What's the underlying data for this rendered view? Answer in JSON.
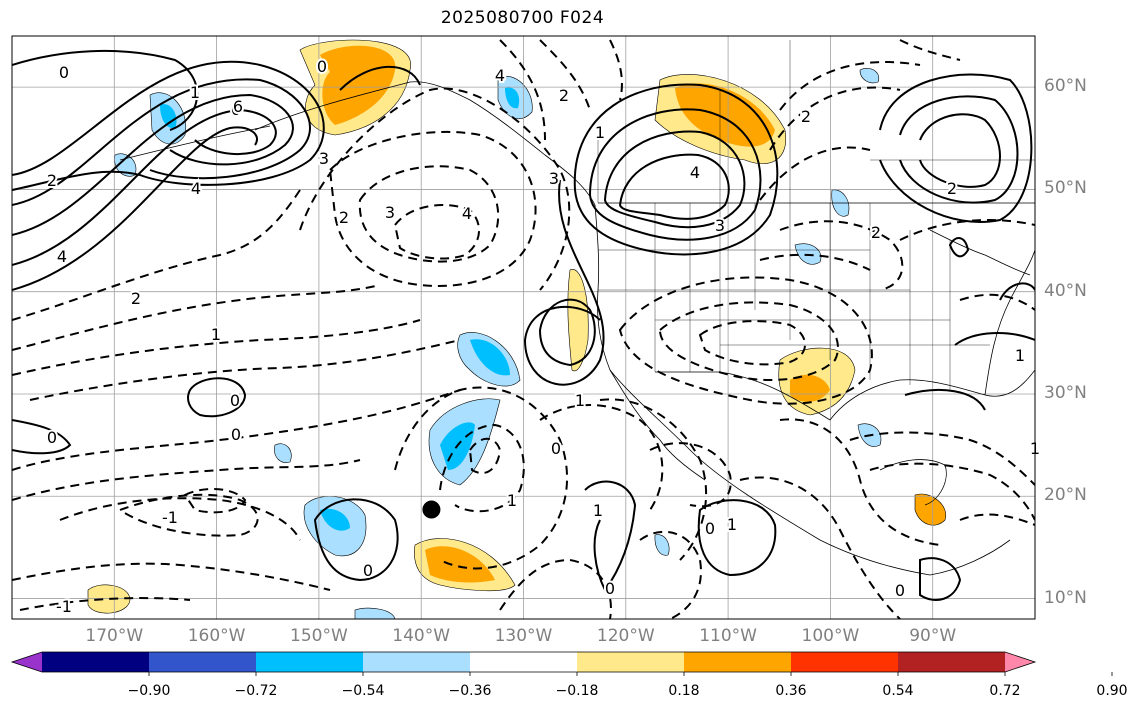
{
  "title": "2025080700 F024",
  "map": {
    "extent": {
      "lon_min": -180,
      "lon_max": -80,
      "lat_min": 8,
      "lat_max": 65
    },
    "gridlines": true,
    "lat_labels": [
      "60°N",
      "50°N",
      "40°N",
      "30°N",
      "20°N",
      "10°N"
    ],
    "lat_values": [
      60,
      50,
      40,
      30,
      20,
      10
    ],
    "lon_labels": [
      "170°W",
      "160°W",
      "150°W",
      "140°W",
      "130°W",
      "120°W",
      "110°W",
      "100°W",
      "90°W"
    ],
    "lon_values": [
      -170,
      -160,
      -150,
      -140,
      -130,
      -120,
      -110,
      -100,
      -90
    ],
    "contour_labels": [
      "0",
      "0",
      "0",
      "0",
      "0",
      "0",
      "0",
      "0",
      "0",
      "0",
      "0",
      "1",
      "1",
      "1",
      "1",
      "1",
      "1",
      "1",
      "1",
      "1",
      "-1",
      "-1",
      "2",
      "2",
      "2",
      "2",
      "2",
      "2",
      "2",
      "3",
      "3",
      "3",
      "3",
      "4",
      "4",
      "4",
      "4",
      "4",
      "6"
    ],
    "marker": {
      "lon": -139,
      "lat": 18.7
    }
  },
  "colorbar": {
    "colors": [
      "#9933cc",
      "#000080",
      "#3355cc",
      "#00bfff",
      "#aadfff",
      "#ffffff",
      "#ffe98a",
      "#ffa500",
      "#ff3300",
      "#b22222",
      "#ff88aa"
    ],
    "ticks": [
      "−0.90",
      "−0.72",
      "−0.54",
      "−0.36",
      "−0.18",
      "0.18",
      "0.36",
      "0.54",
      "0.72",
      "0.90"
    ]
  },
  "colors": {
    "shade_pos_light": "#ffe98a",
    "shade_pos": "#ffa500",
    "shade_neg_light": "#aadfff",
    "shade_neg": "#00bfff",
    "grid": "#a0a0a0",
    "label": "#808080"
  }
}
